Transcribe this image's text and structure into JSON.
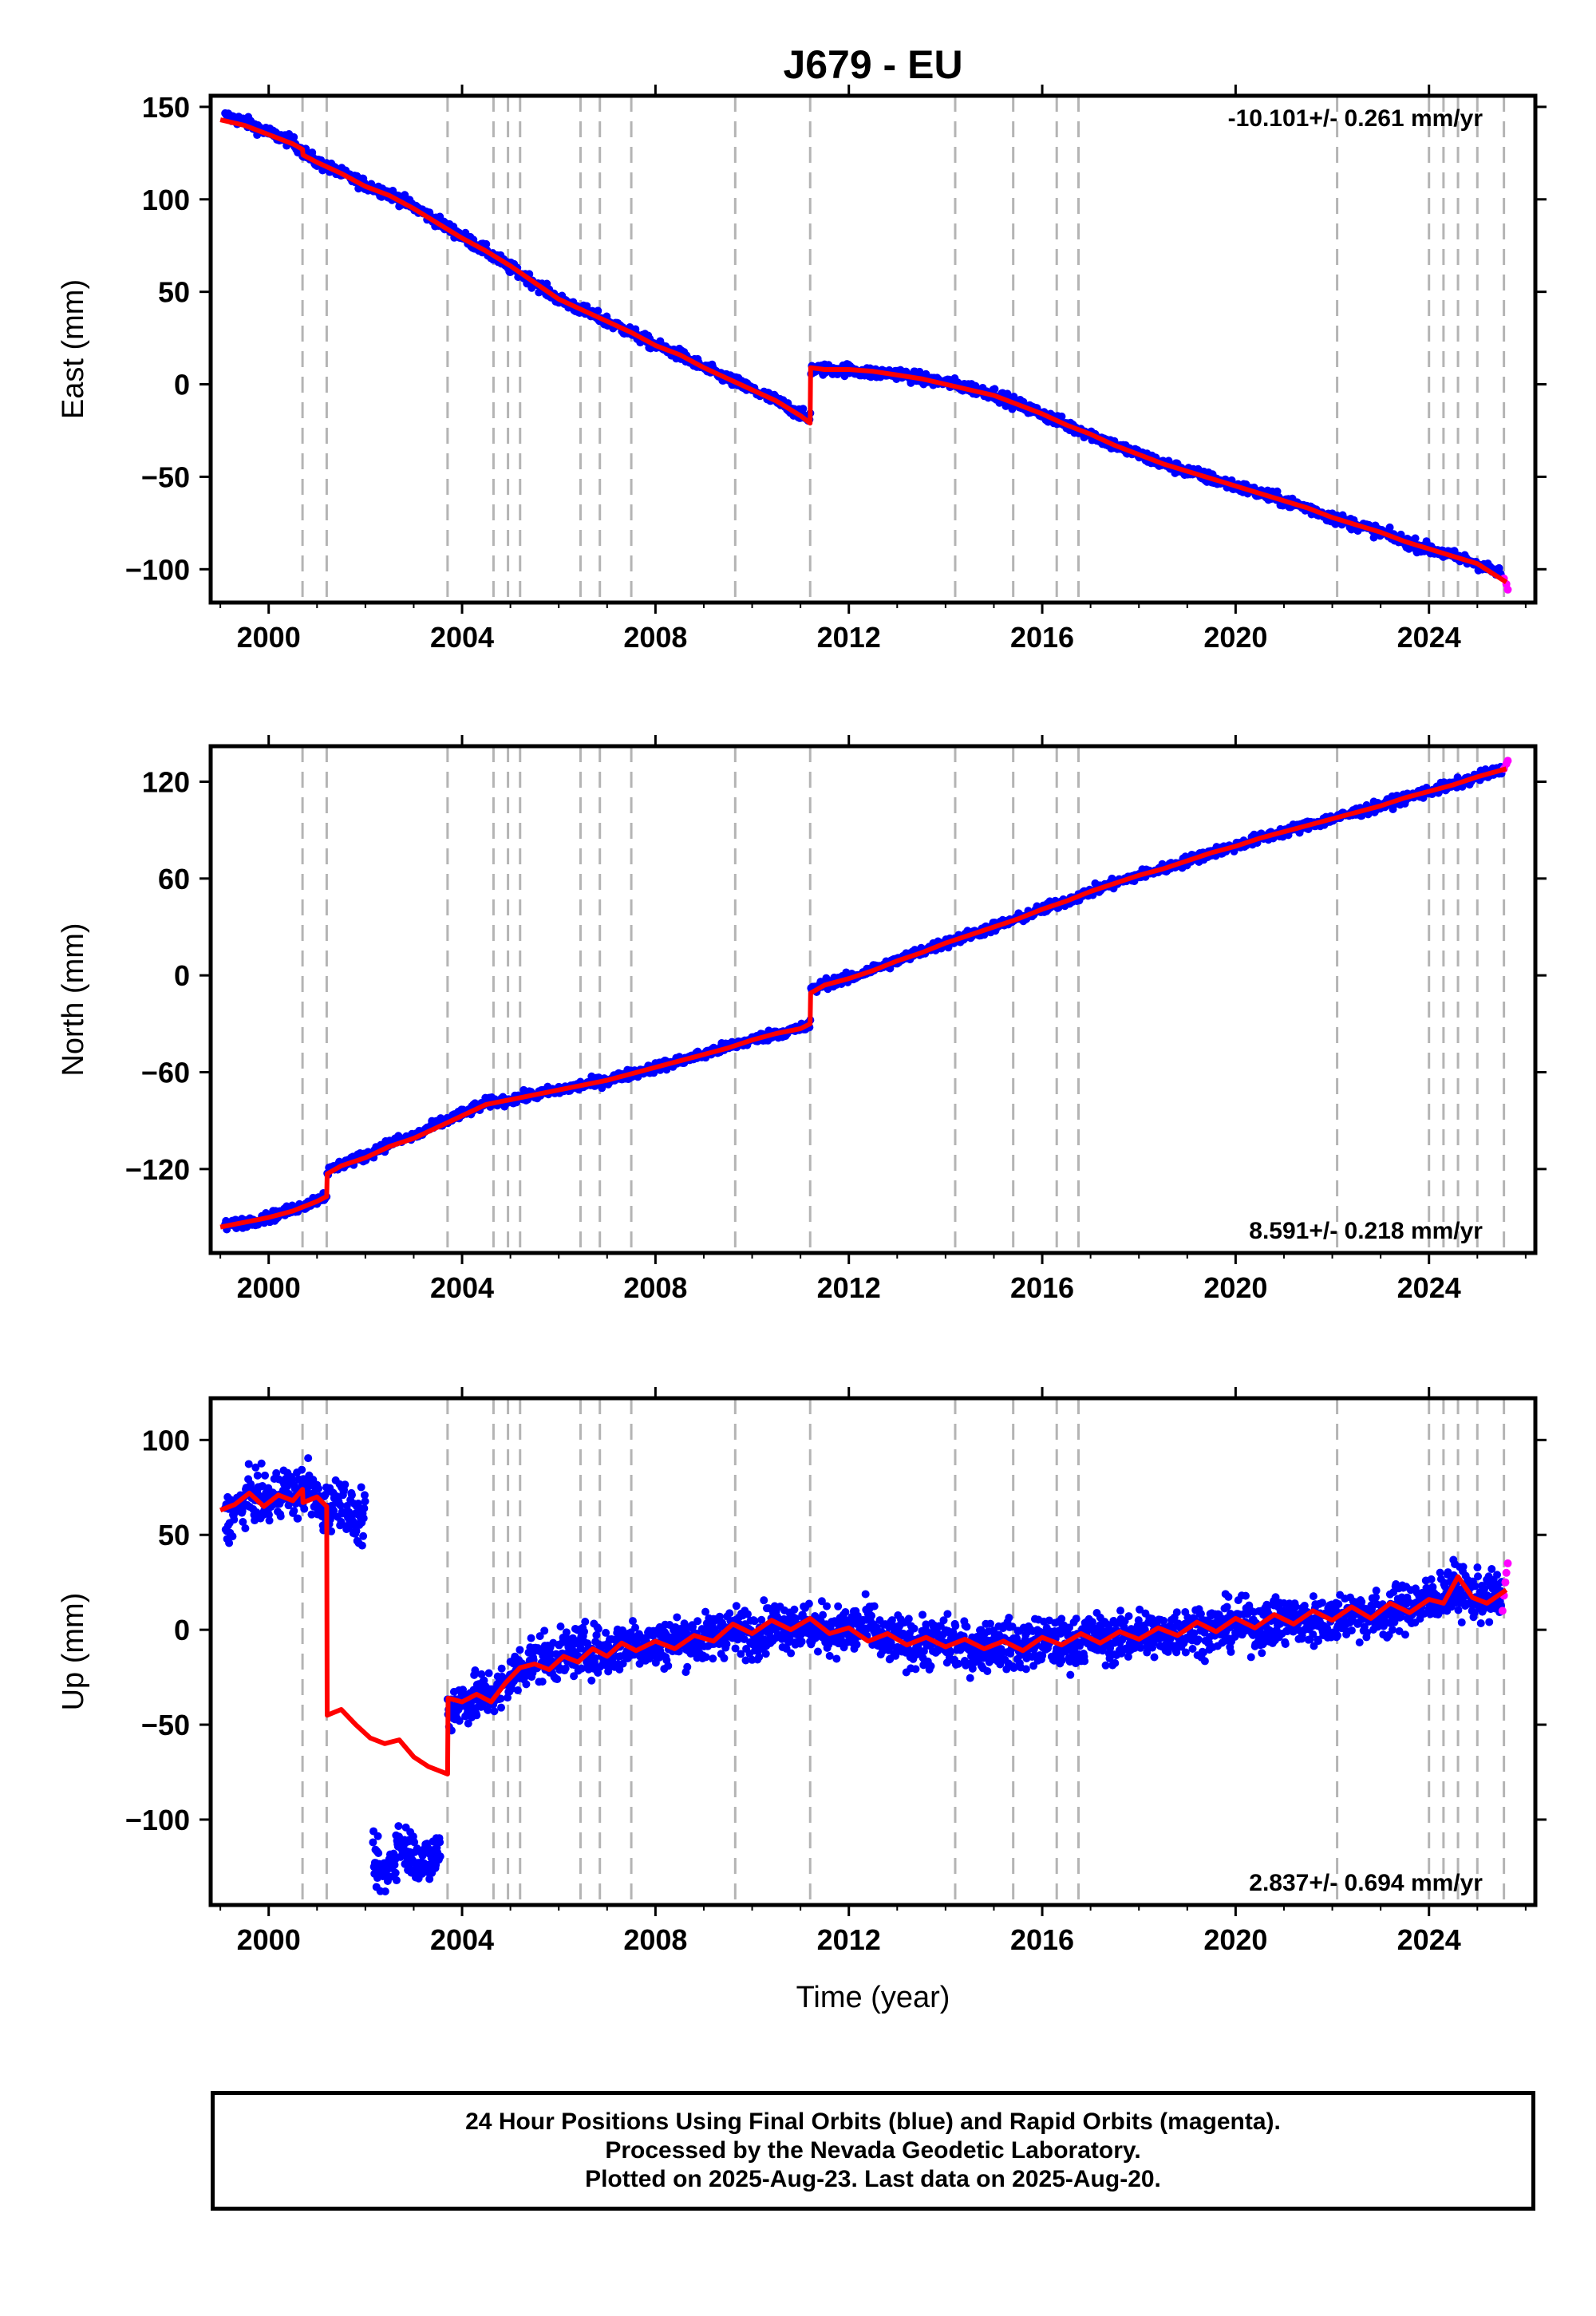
{
  "chart_data": [
    {
      "type": "scatter",
      "title": "J679 - EU",
      "ylabel": "East (mm)",
      "xlabel": "",
      "rate_label": "-10.101+/- 0.261 mm/yr",
      "rate_position": "top-right",
      "xlim": [
        1998.8,
        2026.2
      ],
      "ylim": [
        -118,
        156
      ],
      "x_ticks": [
        2000,
        2004,
        2008,
        2012,
        2016,
        2020,
        2024
      ],
      "y_ticks": [
        -100,
        -50,
        0,
        50,
        100,
        150
      ],
      "y_tick_labels": [
        "−100",
        "−50",
        "0",
        "50",
        "100",
        "150"
      ],
      "grid": false,
      "event_lines": [
        2000.7,
        2001.2,
        2003.7,
        2004.65,
        2004.95,
        2005.2,
        2006.45,
        2006.85,
        2007.5,
        2009.65,
        2011.2,
        2014.2,
        2015.4,
        2016.3,
        2016.75,
        2022.1,
        2024.0,
        2024.3,
        2024.6,
        2025.0,
        2025.55
      ],
      "series": [
        {
          "color": "#0000ff",
          "x": [
            1999.1,
            1999.5,
            2000.0,
            2000.5,
            2000.7,
            2001.0,
            2001.5,
            2002.0,
            2002.5,
            2003.0,
            2003.5,
            2004.0,
            2004.5,
            2005.0,
            2005.5,
            2006.0,
            2006.5,
            2007.0,
            2007.5,
            2008.0,
            2008.5,
            2009.0,
            2009.5,
            2010.0,
            2010.5,
            2011.0,
            2011.2,
            2011.21,
            2011.5,
            2012.0,
            2012.5,
            2013.0,
            2013.5,
            2014.0,
            2014.5,
            2015.0,
            2015.5,
            2016.0,
            2016.5,
            2017.0,
            2017.5,
            2018.0,
            2018.5,
            2019.0,
            2019.5,
            2020.0,
            2020.5,
            2021.0,
            2021.5,
            2022.0,
            2022.5,
            2023.0,
            2023.5,
            2024.0,
            2024.5,
            2025.0,
            2025.5
          ],
          "y": [
            145,
            142,
            136,
            131,
            126,
            120,
            114,
            108,
            103,
            96,
            88,
            80,
            72,
            63,
            55,
            46,
            40,
            34,
            28,
            21,
            16,
            9,
            3,
            -3,
            -9,
            -16,
            -20,
            8,
            8,
            8,
            6,
            6,
            3,
            1,
            -2,
            -5,
            -11,
            -16,
            -22,
            -27,
            -33,
            -38,
            -43,
            -47,
            -51,
            -55,
            -59,
            -63,
            -67,
            -72,
            -76,
            -80,
            -85,
            -89,
            -93,
            -97,
            -103
          ]
        },
        {
          "color": "#ff00ff",
          "x": [
            2025.55,
            2025.6,
            2025.63
          ],
          "y": [
            -105,
            -108,
            -111
          ]
        },
        {
          "color": "#ff0000",
          "x": [
            1999.0,
            1999.5,
            2000.0,
            2000.5,
            2000.7,
            2000.71,
            2001.0,
            2001.5,
            2002.0,
            2002.5,
            2003.0,
            2003.5,
            2004.0,
            2004.5,
            2005.0,
            2005.5,
            2006.0,
            2006.5,
            2007.0,
            2007.5,
            2008.0,
            2008.5,
            2009.0,
            2009.5,
            2010.0,
            2010.5,
            2011.0,
            2011.2,
            2011.21,
            2011.5,
            2012.0,
            2012.5,
            2013.0,
            2013.5,
            2014.0,
            2014.5,
            2015.0,
            2015.5,
            2016.0,
            2016.5,
            2017.0,
            2017.5,
            2018.0,
            2018.5,
            2019.0,
            2019.5,
            2020.0,
            2020.5,
            2021.0,
            2021.5,
            2022.0,
            2022.5,
            2023.0,
            2023.5,
            2024.0,
            2024.5,
            2025.0,
            2025.6
          ],
          "y": [
            143,
            140,
            135,
            130,
            127,
            124,
            120,
            114,
            107,
            102,
            95,
            87,
            79,
            72,
            64,
            55,
            46,
            40,
            34,
            28,
            21,
            16,
            9,
            3,
            -3,
            -9,
            -17,
            -21,
            9,
            8,
            8,
            7,
            5,
            3,
            0,
            -3,
            -6,
            -11,
            -16,
            -22,
            -27,
            -33,
            -38,
            -43,
            -47,
            -51,
            -55,
            -59,
            -63,
            -67,
            -72,
            -76,
            -80,
            -85,
            -89,
            -93,
            -97,
            -107
          ]
        }
      ]
    },
    {
      "type": "scatter",
      "title": "",
      "ylabel": "North (mm)",
      "xlabel": "",
      "rate_label": "8.591+/- 0.218 mm/yr",
      "rate_position": "bottom-right",
      "xlim": [
        1998.8,
        2026.2
      ],
      "ylim": [
        -172,
        142
      ],
      "x_ticks": [
        2000,
        2004,
        2008,
        2012,
        2016,
        2020,
        2024
      ],
      "y_ticks": [
        -120,
        -60,
        0,
        60,
        120
      ],
      "y_tick_labels": [
        "−120",
        "−60",
        "0",
        "60",
        "120"
      ],
      "grid": false,
      "event_lines": [
        2000.7,
        2001.2,
        2003.7,
        2004.65,
        2004.95,
        2005.2,
        2006.45,
        2006.85,
        2007.5,
        2009.65,
        2011.2,
        2014.2,
        2015.4,
        2016.3,
        2016.75,
        2022.1,
        2024.0,
        2024.3,
        2024.6,
        2025.0,
        2025.55
      ],
      "series": [
        {
          "color": "#0000ff",
          "x": [
            1999.1,
            1999.5,
            2000.0,
            2000.5,
            2001.0,
            2001.2,
            2001.21,
            2001.5,
            2002.0,
            2002.5,
            2003.0,
            2003.5,
            2004.0,
            2004.5,
            2005.0,
            2005.5,
            2006.0,
            2006.5,
            2007.0,
            2007.5,
            2008.0,
            2008.5,
            2009.0,
            2009.5,
            2010.0,
            2010.5,
            2011.0,
            2011.2,
            2011.21,
            2011.5,
            2012.0,
            2012.5,
            2013.0,
            2013.5,
            2014.0,
            2014.5,
            2015.0,
            2015.5,
            2016.0,
            2016.5,
            2017.0,
            2017.5,
            2018.0,
            2018.5,
            2019.0,
            2019.5,
            2020.0,
            2020.5,
            2021.0,
            2021.5,
            2022.0,
            2022.5,
            2023.0,
            2023.5,
            2024.0,
            2024.5,
            2025.0,
            2025.5
          ],
          "y": [
            -155,
            -153,
            -150,
            -145,
            -139,
            -136,
            -122,
            -117,
            -112,
            -104,
            -100,
            -92,
            -86,
            -79,
            -77,
            -74,
            -71,
            -68,
            -65,
            -61,
            -57,
            -53,
            -49,
            -44,
            -40,
            -36,
            -33,
            -31,
            -10,
            -5,
            -2,
            4,
            9,
            15,
            20,
            25,
            30,
            35,
            41,
            46,
            52,
            57,
            62,
            66,
            71,
            76,
            80,
            85,
            89,
            93,
            97,
            101,
            105,
            110,
            114,
            118,
            123,
            127
          ]
        },
        {
          "color": "#ff00ff",
          "x": [
            2025.55,
            2025.6,
            2025.63
          ],
          "y": [
            128,
            131,
            133
          ]
        },
        {
          "color": "#ff0000",
          "x": [
            1999.0,
            1999.5,
            2000.0,
            2000.5,
            2001.0,
            2001.2,
            2001.21,
            2001.5,
            2002.0,
            2002.5,
            2003.0,
            2003.5,
            2004.0,
            2004.5,
            2005.0,
            2005.5,
            2006.0,
            2006.5,
            2007.0,
            2007.5,
            2008.0,
            2008.5,
            2009.0,
            2009.5,
            2010.0,
            2010.5,
            2011.0,
            2011.2,
            2011.21,
            2011.5,
            2012.0,
            2012.5,
            2013.0,
            2013.5,
            2014.0,
            2014.5,
            2015.0,
            2015.5,
            2016.0,
            2016.5,
            2017.0,
            2017.5,
            2018.0,
            2018.5,
            2019.0,
            2019.5,
            2020.0,
            2020.5,
            2021.0,
            2021.5,
            2022.0,
            2022.5,
            2023.0,
            2023.5,
            2024.0,
            2024.5,
            2025.0,
            2025.6
          ],
          "y": [
            -156,
            -153,
            -150,
            -146,
            -140,
            -137,
            -123,
            -118,
            -113,
            -106,
            -101,
            -94,
            -87,
            -80,
            -77,
            -74,
            -71,
            -68,
            -65,
            -61,
            -57,
            -53,
            -49,
            -45,
            -40,
            -36,
            -33,
            -30,
            -11,
            -6,
            -2,
            3,
            9,
            14,
            20,
            25,
            30,
            35,
            41,
            46,
            52,
            57,
            62,
            66,
            71,
            76,
            80,
            85,
            89,
            93,
            97,
            101,
            105,
            110,
            114,
            118,
            123,
            128
          ]
        }
      ]
    },
    {
      "type": "scatter",
      "title": "",
      "ylabel": "Up (mm)",
      "xlabel": "Time (year)",
      "rate_label": "2.837+/- 0.694 mm/yr",
      "rate_position": "bottom-right",
      "xlim": [
        1998.8,
        2026.2
      ],
      "ylim": [
        -145,
        122
      ],
      "x_ticks": [
        2000,
        2004,
        2008,
        2012,
        2016,
        2020,
        2024
      ],
      "y_ticks": [
        -100,
        -50,
        0,
        50,
        100
      ],
      "y_tick_labels": [
        "−100",
        "−50",
        "0",
        "50",
        "100"
      ],
      "grid": false,
      "event_lines": [
        2000.7,
        2001.2,
        2003.7,
        2004.65,
        2004.95,
        2005.2,
        2006.45,
        2006.85,
        2007.5,
        2009.65,
        2011.2,
        2014.2,
        2015.4,
        2016.3,
        2016.75,
        2022.1,
        2024.0,
        2024.3,
        2024.6,
        2025.0,
        2025.55
      ],
      "series": [
        {
          "color": "#0000ff",
          "x": [
            1999.1,
            1999.4,
            1999.7,
            2000.0,
            2000.3,
            2000.6,
            2000.8,
            2001.1,
            2001.5,
            2001.8,
            2002.0,
            2002.1,
            2002.4,
            2002.7,
            2003.0,
            2003.3,
            2003.55,
            2003.7,
            2004.0,
            2004.4,
            2004.8,
            2005.1,
            2005.5,
            2006.0,
            2006.5,
            2007.0,
            2007.5,
            2008.0,
            2008.5,
            2009.0,
            2009.5,
            2010.0,
            2010.5,
            2011.0,
            2011.5,
            2012.0,
            2012.5,
            2012.7,
            2013.0,
            2013.5,
            2014.0,
            2014.5,
            2015.0,
            2015.5,
            2016.0,
            2016.5,
            2017.0,
            2017.5,
            2018.0,
            2018.5,
            2019.0,
            2019.5,
            2020.0,
            2020.5,
            2021.0,
            2021.5,
            2022.0,
            2022.5,
            2023.0,
            2023.5,
            2024.0,
            2024.5,
            2025.0,
            2025.5
          ],
          "y": [
            58,
            65,
            72,
            66,
            75,
            70,
            78,
            62,
            70,
            56,
            60,
            -120,
            -130,
            -112,
            -118,
            -123,
            -115,
            -42,
            -38,
            -35,
            -32,
            -22,
            -15,
            -14,
            -10,
            -12,
            -6,
            -8,
            -5,
            -5,
            0,
            -2,
            3,
            2,
            0,
            -1,
            3,
            -8,
            -5,
            -8,
            -6,
            -10,
            -7,
            -9,
            -6,
            -8,
            -4,
            -5,
            -2,
            -3,
            1,
            0,
            3,
            2,
            5,
            4,
            6,
            9,
            7,
            12,
            15,
            22,
            17,
            18
          ]
        },
        {
          "color": "#ff00ff",
          "x": [
            2025.52,
            2025.55,
            2025.58,
            2025.6,
            2025.63
          ],
          "y": [
            10,
            18,
            25,
            30,
            35
          ]
        },
        {
          "color": "#ff0000",
          "x": [
            1999.0,
            1999.3,
            1999.6,
            1999.9,
            2000.2,
            2000.5,
            2000.7,
            2000.71,
            2001.0,
            2001.2,
            2001.21,
            2001.5,
            2001.8,
            2002.1,
            2002.4,
            2002.7,
            2003.0,
            2003.3,
            2003.7,
            2003.71,
            2004.0,
            2004.3,
            2004.6,
            2004.9,
            2005.2,
            2005.5,
            2005.8,
            2006.1,
            2006.4,
            2006.7,
            2007.0,
            2007.3,
            2007.6,
            2008.0,
            2008.4,
            2008.8,
            2009.2,
            2009.6,
            2010.0,
            2010.4,
            2010.8,
            2011.2,
            2011.6,
            2012.0,
            2012.4,
            2012.8,
            2013.2,
            2013.6,
            2014.0,
            2014.4,
            2014.8,
            2015.2,
            2015.6,
            2016.0,
            2016.4,
            2016.8,
            2017.2,
            2017.6,
            2018.0,
            2018.4,
            2018.8,
            2019.2,
            2019.6,
            2020.0,
            2020.4,
            2020.8,
            2021.2,
            2021.6,
            2022.0,
            2022.4,
            2022.8,
            2023.2,
            2023.6,
            2024.0,
            2024.3,
            2024.6,
            2024.9,
            2025.2,
            2025.6
          ],
          "y": [
            63,
            66,
            72,
            65,
            71,
            68,
            74,
            67,
            70,
            65,
            -45,
            -42,
            -50,
            -57,
            -60,
            -58,
            -67,
            -72,
            -76,
            -36,
            -38,
            -34,
            -38,
            -28,
            -20,
            -18,
            -21,
            -14,
            -17,
            -10,
            -14,
            -7,
            -11,
            -6,
            -10,
            -3,
            -6,
            3,
            -2,
            5,
            0,
            6,
            -2,
            1,
            -6,
            -2,
            -8,
            -4,
            -9,
            -5,
            -10,
            -6,
            -11,
            -4,
            -8,
            -2,
            -7,
            -1,
            -5,
            1,
            -3,
            4,
            -1,
            6,
            1,
            8,
            3,
            10,
            5,
            12,
            6,
            14,
            9,
            16,
            14,
            28,
            17,
            14,
            21
          ]
        }
      ]
    }
  ],
  "footer": {
    "line1": "24 Hour Positions Using Final Orbits (blue) and Rapid Orbits (magenta).",
    "line2": "Processed by the Nevada Geodetic Laboratory.",
    "line3": "Plotted on 2025-Aug-23. Last data on 2025-Aug-20."
  }
}
